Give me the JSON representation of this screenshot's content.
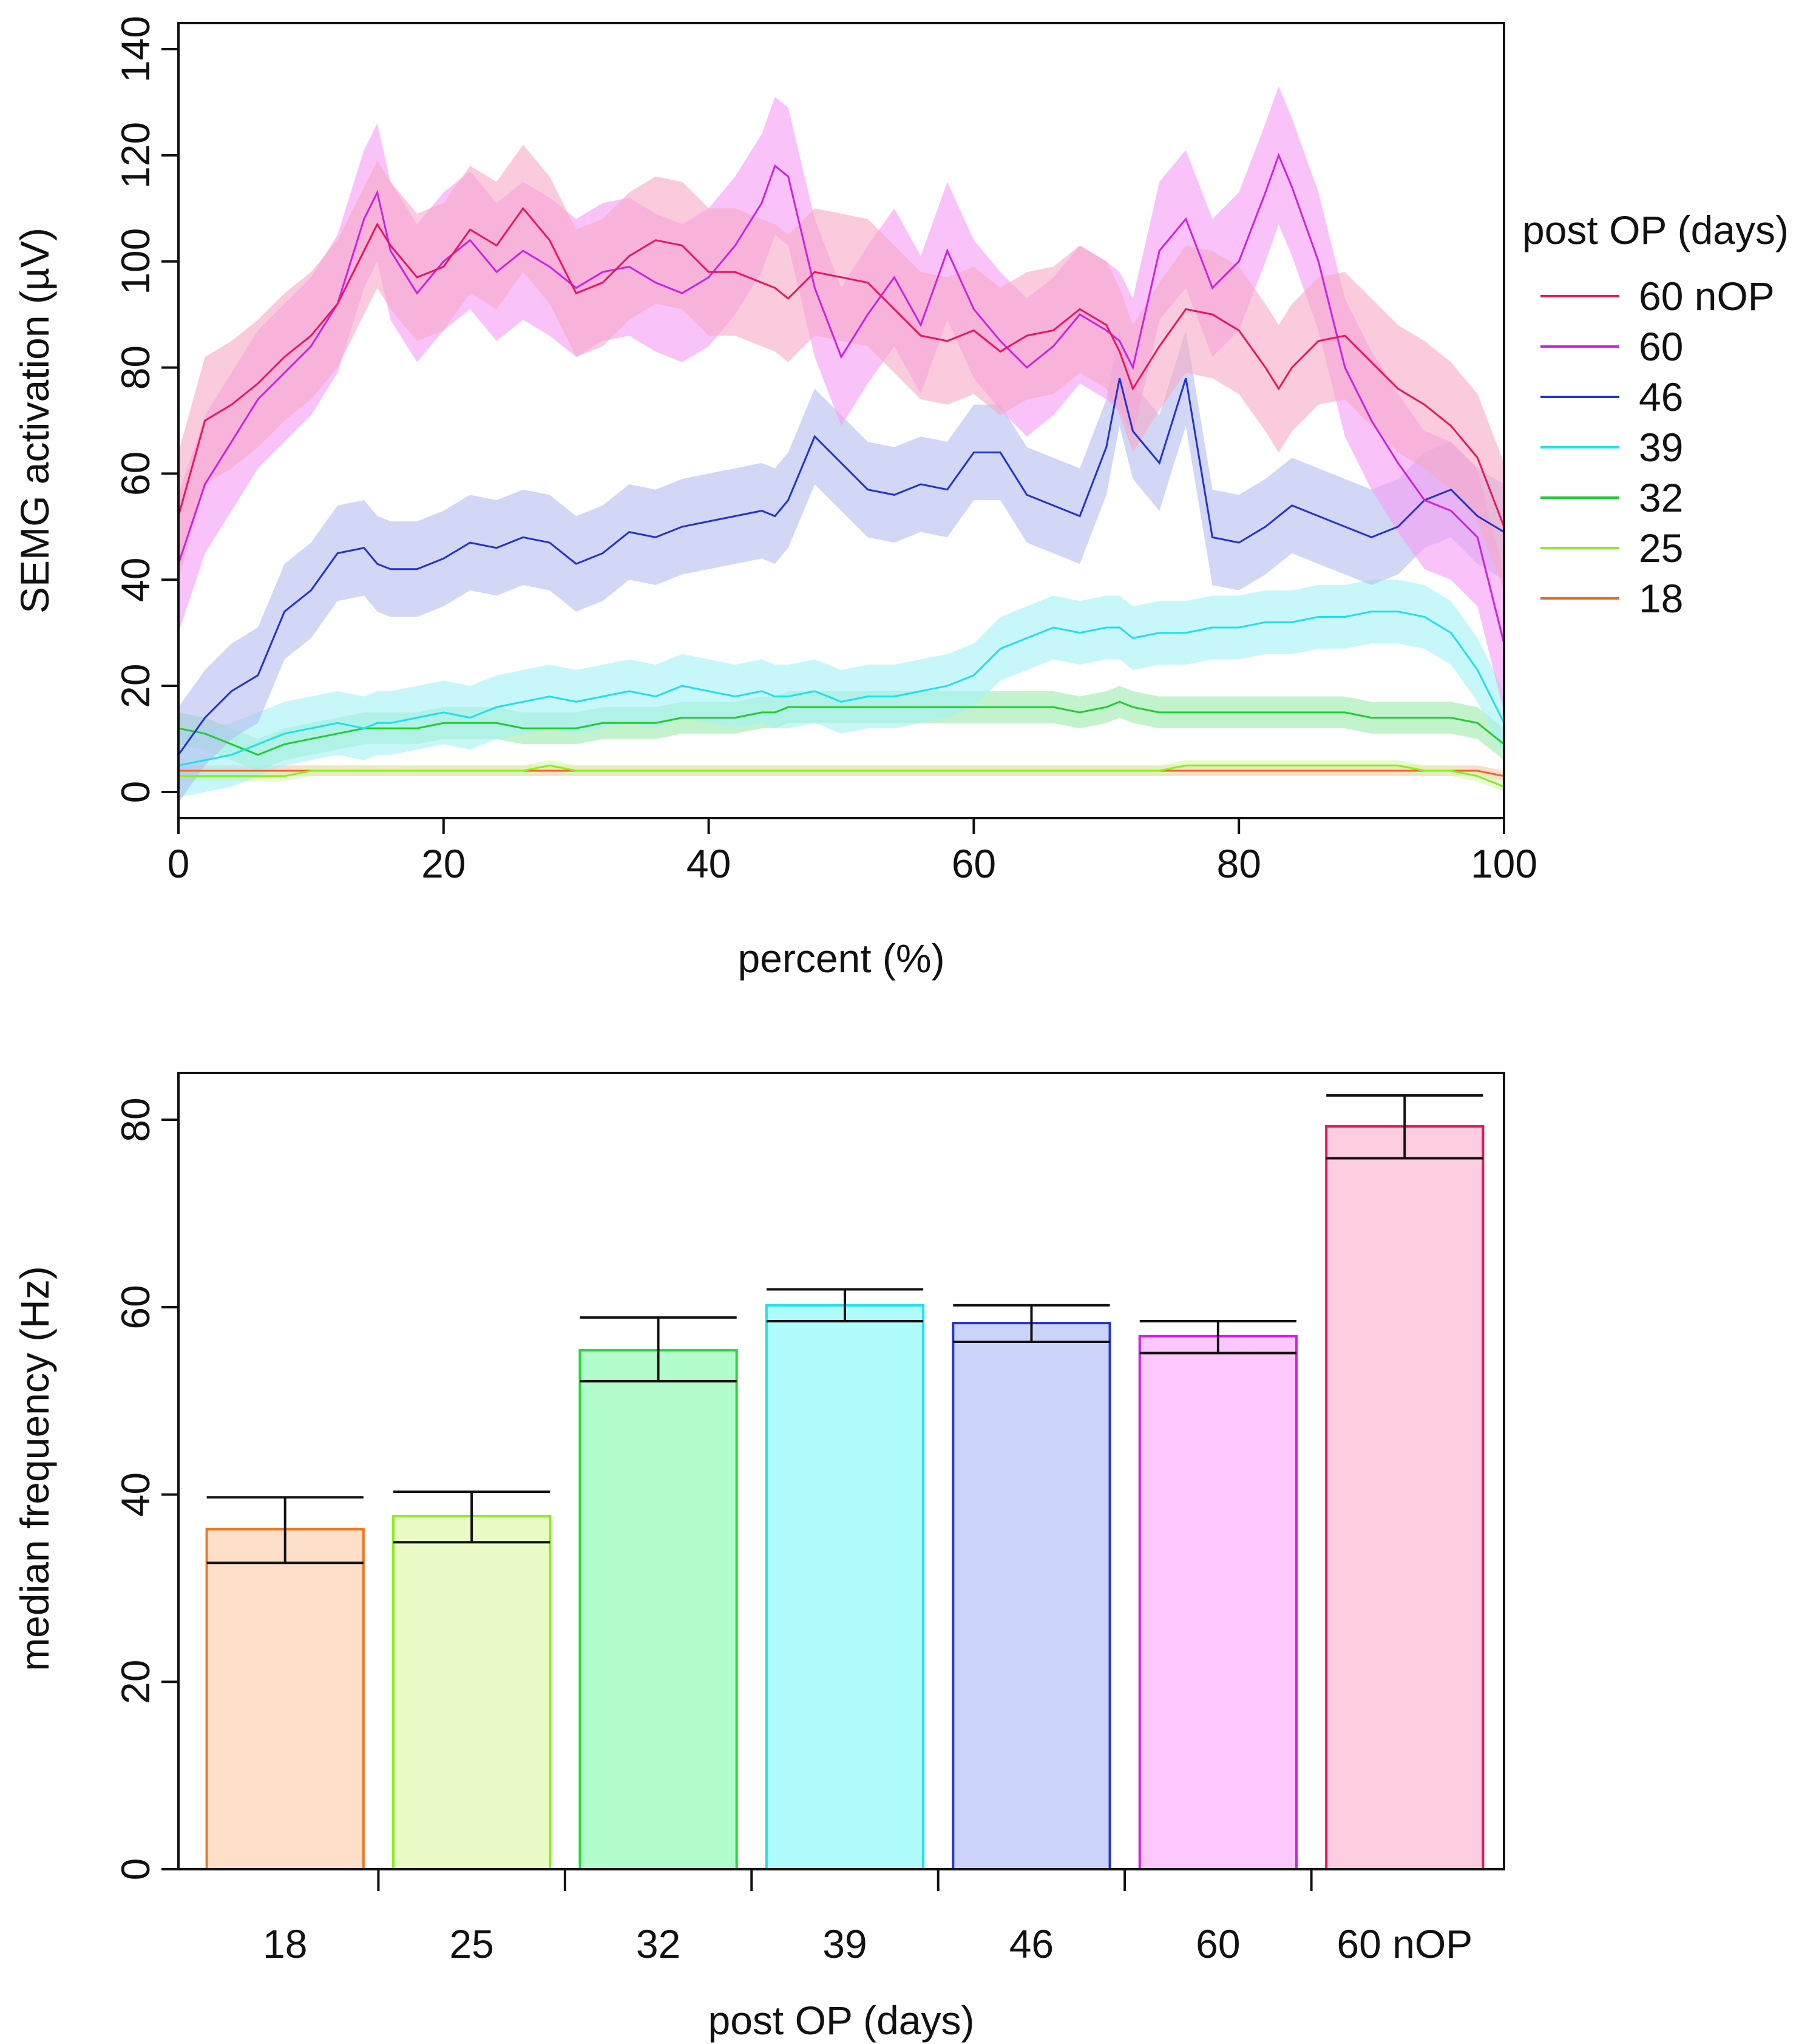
{
  "chart_data": [
    {
      "type": "line",
      "title": "",
      "xlabel": "percent (%)",
      "ylabel": "SEMG activation (µV)",
      "xlim": [
        0,
        100
      ],
      "ylim": [
        0,
        140
      ],
      "x_ticks": [
        "0",
        "20",
        "40",
        "60",
        "80",
        "100"
      ],
      "y_ticks": [
        "0",
        "20",
        "40",
        "60",
        "80",
        "100",
        "120",
        "140"
      ],
      "legend": {
        "title": "post OP (days)",
        "placement": "right",
        "entries": [
          "60 nOP",
          "60",
          "46",
          "39",
          "32",
          "25",
          "18"
        ]
      },
      "x": [
        0,
        2,
        4,
        6,
        8,
        10,
        12,
        14,
        15,
        16,
        18,
        20,
        22,
        24,
        26,
        28,
        30,
        32,
        34,
        36,
        38,
        40,
        42,
        44,
        45,
        46,
        48,
        50,
        52,
        54,
        56,
        58,
        60,
        62,
        64,
        66,
        68,
        70,
        71,
        72,
        74,
        76,
        78,
        80,
        82,
        83,
        84,
        86,
        88,
        90,
        92,
        94,
        96,
        98,
        100
      ],
      "series": [
        {
          "name": "60 nOP",
          "color": "#e8175d",
          "band_color": "#f7a8c4",
          "band": 12,
          "values": [
            52,
            70,
            73,
            77,
            82,
            86,
            92,
            102,
            107,
            103,
            97,
            99,
            106,
            103,
            110,
            104,
            94,
            96,
            101,
            104,
            103,
            98,
            98,
            96,
            95,
            93,
            98,
            97,
            96,
            91,
            86,
            85,
            87,
            83,
            86,
            87,
            91,
            88,
            83,
            76,
            84,
            91,
            90,
            87,
            80,
            76,
            80,
            85,
            86,
            81,
            76,
            73,
            69,
            63,
            50
          ]
        },
        {
          "name": "60",
          "color": "#cc22e0",
          "band_color": "#f59bf5",
          "band": 13,
          "values": [
            43,
            58,
            66,
            74,
            79,
            84,
            92,
            108,
            113,
            102,
            94,
            100,
            104,
            98,
            102,
            99,
            95,
            98,
            99,
            96,
            94,
            97,
            103,
            111,
            118,
            116,
            95,
            82,
            90,
            97,
            88,
            102,
            91,
            85,
            80,
            84,
            90,
            87,
            85,
            80,
            102,
            108,
            95,
            100,
            113,
            120,
            114,
            100,
            80,
            70,
            62,
            55,
            53,
            48,
            28
          ]
        },
        {
          "name": "46",
          "color": "#2233cc",
          "band_color": "#b3bcef",
          "band": 9,
          "values": [
            7,
            14,
            19,
            22,
            34,
            38,
            45,
            46,
            43,
            42,
            42,
            44,
            47,
            46,
            48,
            47,
            43,
            45,
            49,
            48,
            50,
            51,
            52,
            53,
            52,
            55,
            67,
            62,
            57,
            56,
            58,
            57,
            64,
            64,
            56,
            54,
            52,
            65,
            78,
            68,
            62,
            78,
            48,
            47,
            50,
            52,
            54,
            52,
            50,
            48,
            50,
            55,
            57,
            52,
            49
          ]
        },
        {
          "name": "39",
          "color": "#22dfea",
          "band_color": "#a4f1f6",
          "band": 6,
          "values": [
            5,
            6,
            7,
            9,
            11,
            12,
            13,
            12,
            13,
            13,
            14,
            15,
            14,
            16,
            17,
            18,
            17,
            18,
            19,
            18,
            20,
            19,
            18,
            19,
            18,
            18,
            19,
            17,
            18,
            18,
            19,
            20,
            22,
            27,
            29,
            31,
            30,
            31,
            31,
            29,
            30,
            30,
            31,
            31,
            32,
            32,
            32,
            33,
            33,
            34,
            34,
            33,
            30,
            23,
            13
          ]
        },
        {
          "name": "32",
          "color": "#22cc33",
          "band_color": "#9bebab",
          "band": 3,
          "values": [
            12,
            11,
            9,
            7,
            9,
            10,
            11,
            12,
            12,
            12,
            12,
            13,
            13,
            13,
            12,
            12,
            12,
            13,
            13,
            13,
            14,
            14,
            14,
            15,
            15,
            16,
            16,
            16,
            16,
            16,
            16,
            16,
            16,
            16,
            16,
            16,
            15,
            16,
            17,
            16,
            15,
            15,
            15,
            15,
            15,
            15,
            15,
            15,
            15,
            14,
            14,
            14,
            14,
            13,
            9
          ]
        },
        {
          "name": "25",
          "color": "#88ee22",
          "band_color": "#d8f7b0",
          "band": 1,
          "values": [
            3,
            3,
            3,
            3,
            3,
            4,
            4,
            4,
            4,
            4,
            4,
            4,
            4,
            4,
            4,
            5,
            4,
            4,
            4,
            4,
            4,
            4,
            4,
            4,
            4,
            4,
            4,
            4,
            4,
            4,
            4,
            4,
            4,
            4,
            4,
            4,
            4,
            4,
            4,
            4,
            4,
            5,
            5,
            5,
            5,
            5,
            5,
            5,
            5,
            5,
            5,
            4,
            4,
            3,
            1
          ]
        },
        {
          "name": "18",
          "color": "#ee6622",
          "band_color": "#f8c7aa",
          "band": 1,
          "values": [
            4,
            4,
            4,
            4,
            4,
            4,
            4,
            4,
            4,
            4,
            4,
            4,
            4,
            4,
            4,
            4,
            4,
            4,
            4,
            4,
            4,
            4,
            4,
            4,
            4,
            4,
            4,
            4,
            4,
            4,
            4,
            4,
            4,
            4,
            4,
            4,
            4,
            4,
            4,
            4,
            4,
            4,
            4,
            4,
            4,
            4,
            4,
            4,
            4,
            4,
            4,
            4,
            4,
            4,
            3
          ]
        }
      ]
    },
    {
      "type": "bar",
      "title": "",
      "xlabel": "post OP (days)",
      "ylabel": "median frequency (Hz)",
      "ylim": [
        0,
        85
      ],
      "y_ticks": [
        "0",
        "20",
        "40",
        "60",
        "80"
      ],
      "categories": [
        "18",
        "25",
        "32",
        "39",
        "46",
        "60",
        "60 nOP"
      ],
      "values": [
        36.3,
        37.7,
        55.4,
        60.2,
        58.3,
        56.9,
        79.3
      ],
      "error_low": [
        32.7,
        34.9,
        52.1,
        58.5,
        56.3,
        55.1,
        75.9
      ],
      "error_high": [
        39.7,
        40.3,
        58.9,
        61.9,
        60.2,
        58.5,
        82.6
      ],
      "colors": [
        "#ee7722",
        "#88ee22",
        "#22dd33",
        "#22dfea",
        "#2233cc",
        "#cc22e0",
        "#e8175d"
      ],
      "fills": [
        "#fddfca",
        "#ebfbc8",
        "#b3fdcd",
        "#b0fbfc",
        "#cbd3fb",
        "#fcc8fc",
        "#fdcde1"
      ]
    }
  ]
}
